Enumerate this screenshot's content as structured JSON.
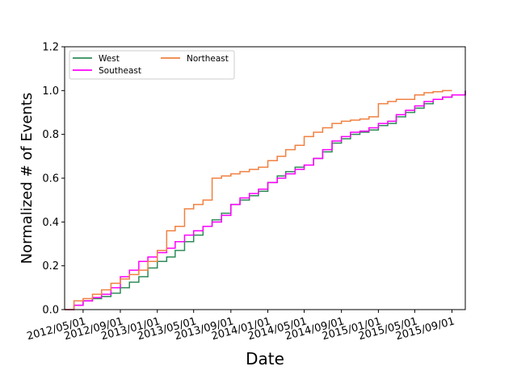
{
  "chart_data": {
    "type": "line",
    "title": "",
    "xlabel": "Date",
    "ylabel": "Normalized # of Events",
    "xlim": [
      "2012-03-01",
      "2015-10-15"
    ],
    "ylim": [
      0.0,
      1.2
    ],
    "x_ticks": [
      "2012-05-01",
      "2012-09-01",
      "2013-01-01",
      "2013-05-01",
      "2013-09-01",
      "2014-01-01",
      "2014-05-01",
      "2014-09-01",
      "2015-01-01",
      "2015-05-01",
      "2015-09-01"
    ],
    "x_tick_labels": [
      "2012/05/01",
      "2012/09/01",
      "2013/01/01",
      "2013/05/01",
      "2013/09/01",
      "2014/01/01",
      "2014/05/01",
      "2014/09/01",
      "2015/01/01",
      "2015/05/01",
      "2015/09/01"
    ],
    "y_ticks": [
      0.0,
      0.2,
      0.4,
      0.6,
      0.8,
      1.0,
      1.2
    ],
    "y_tick_labels": [
      "0.0",
      "0.2",
      "0.4",
      "0.6",
      "0.8",
      "1.0",
      "1.2"
    ],
    "grid": false,
    "legend": {
      "placement": "top-left",
      "columns": 2,
      "order": [
        "West",
        "Southeast",
        "Northeast"
      ]
    },
    "series": [
      {
        "name": "West",
        "color": "#2e8b57",
        "points": [
          [
            "2012-03-01",
            0.0
          ],
          [
            "2012-04-01",
            0.02
          ],
          [
            "2012-05-01",
            0.04
          ],
          [
            "2012-06-01",
            0.05
          ],
          [
            "2012-07-01",
            0.06
          ],
          [
            "2012-08-01",
            0.075
          ],
          [
            "2012-09-01",
            0.1
          ],
          [
            "2012-10-01",
            0.125
          ],
          [
            "2012-11-01",
            0.15
          ],
          [
            "2012-12-01",
            0.19
          ],
          [
            "2013-01-01",
            0.22
          ],
          [
            "2013-02-01",
            0.24
          ],
          [
            "2013-03-01",
            0.27
          ],
          [
            "2013-04-01",
            0.31
          ],
          [
            "2013-05-01",
            0.34
          ],
          [
            "2013-06-01",
            0.38
          ],
          [
            "2013-07-01",
            0.41
          ],
          [
            "2013-08-01",
            0.44
          ],
          [
            "2013-09-01",
            0.48
          ],
          [
            "2013-10-01",
            0.5
          ],
          [
            "2013-11-01",
            0.52
          ],
          [
            "2013-12-01",
            0.54
          ],
          [
            "2014-01-01",
            0.58
          ],
          [
            "2014-02-01",
            0.61
          ],
          [
            "2014-03-01",
            0.63
          ],
          [
            "2014-04-01",
            0.65
          ],
          [
            "2014-05-01",
            0.66
          ],
          [
            "2014-06-01",
            0.69
          ],
          [
            "2014-07-01",
            0.72
          ],
          [
            "2014-08-01",
            0.76
          ],
          [
            "2014-09-01",
            0.78
          ],
          [
            "2014-10-01",
            0.8
          ],
          [
            "2014-11-01",
            0.81
          ],
          [
            "2014-12-01",
            0.82
          ],
          [
            "2015-01-01",
            0.84
          ],
          [
            "2015-02-01",
            0.85
          ],
          [
            "2015-03-01",
            0.88
          ],
          [
            "2015-04-01",
            0.9
          ],
          [
            "2015-05-01",
            0.92
          ],
          [
            "2015-06-01",
            0.94
          ],
          [
            "2015-07-01",
            0.96
          ],
          [
            "2015-08-01",
            0.97
          ],
          [
            "2015-09-01",
            0.98
          ],
          [
            "2015-10-15",
            1.0
          ]
        ]
      },
      {
        "name": "Southeast",
        "color": "#ff00ff",
        "points": [
          [
            "2012-03-01",
            0.0
          ],
          [
            "2012-04-01",
            0.02
          ],
          [
            "2012-05-01",
            0.04
          ],
          [
            "2012-06-01",
            0.055
          ],
          [
            "2012-07-01",
            0.07
          ],
          [
            "2012-08-01",
            0.1
          ],
          [
            "2012-09-01",
            0.15
          ],
          [
            "2012-10-01",
            0.18
          ],
          [
            "2012-11-01",
            0.22
          ],
          [
            "2012-12-01",
            0.24
          ],
          [
            "2013-01-01",
            0.26
          ],
          [
            "2013-02-01",
            0.28
          ],
          [
            "2013-03-01",
            0.31
          ],
          [
            "2013-04-01",
            0.34
          ],
          [
            "2013-05-01",
            0.36
          ],
          [
            "2013-06-01",
            0.38
          ],
          [
            "2013-07-01",
            0.4
          ],
          [
            "2013-08-01",
            0.43
          ],
          [
            "2013-09-01",
            0.48
          ],
          [
            "2013-10-01",
            0.51
          ],
          [
            "2013-11-01",
            0.53
          ],
          [
            "2013-12-01",
            0.55
          ],
          [
            "2014-01-01",
            0.58
          ],
          [
            "2014-02-01",
            0.6
          ],
          [
            "2014-03-01",
            0.62
          ],
          [
            "2014-04-01",
            0.64
          ],
          [
            "2014-05-01",
            0.66
          ],
          [
            "2014-06-01",
            0.69
          ],
          [
            "2014-07-01",
            0.73
          ],
          [
            "2014-08-01",
            0.77
          ],
          [
            "2014-09-01",
            0.79
          ],
          [
            "2014-10-01",
            0.81
          ],
          [
            "2014-11-01",
            0.815
          ],
          [
            "2014-12-01",
            0.83
          ],
          [
            "2015-01-01",
            0.85
          ],
          [
            "2015-02-01",
            0.86
          ],
          [
            "2015-03-01",
            0.89
          ],
          [
            "2015-04-01",
            0.91
          ],
          [
            "2015-05-01",
            0.93
          ],
          [
            "2015-06-01",
            0.95
          ],
          [
            "2015-07-01",
            0.96
          ],
          [
            "2015-08-01",
            0.97
          ],
          [
            "2015-09-01",
            0.98
          ],
          [
            "2015-10-15",
            1.0
          ]
        ]
      },
      {
        "name": "Northeast",
        "color": "#f08040",
        "points": [
          [
            "2012-03-01",
            0.0
          ],
          [
            "2012-04-01",
            0.04
          ],
          [
            "2012-05-01",
            0.05
          ],
          [
            "2012-06-01",
            0.07
          ],
          [
            "2012-07-01",
            0.09
          ],
          [
            "2012-08-01",
            0.12
          ],
          [
            "2012-09-01",
            0.14
          ],
          [
            "2012-10-01",
            0.16
          ],
          [
            "2012-11-01",
            0.18
          ],
          [
            "2012-12-01",
            0.22
          ],
          [
            "2013-01-01",
            0.27
          ],
          [
            "2013-02-01",
            0.36
          ],
          [
            "2013-03-01",
            0.38
          ],
          [
            "2013-04-01",
            0.46
          ],
          [
            "2013-05-01",
            0.48
          ],
          [
            "2013-06-01",
            0.5
          ],
          [
            "2013-07-01",
            0.6
          ],
          [
            "2013-08-01",
            0.61
          ],
          [
            "2013-09-01",
            0.62
          ],
          [
            "2013-10-01",
            0.63
          ],
          [
            "2013-11-01",
            0.64
          ],
          [
            "2013-12-01",
            0.65
          ],
          [
            "2014-01-01",
            0.68
          ],
          [
            "2014-02-01",
            0.7
          ],
          [
            "2014-03-01",
            0.73
          ],
          [
            "2014-04-01",
            0.75
          ],
          [
            "2014-05-01",
            0.79
          ],
          [
            "2014-06-01",
            0.81
          ],
          [
            "2014-07-01",
            0.83
          ],
          [
            "2014-08-01",
            0.85
          ],
          [
            "2014-09-01",
            0.86
          ],
          [
            "2014-10-01",
            0.865
          ],
          [
            "2014-11-01",
            0.87
          ],
          [
            "2014-12-01",
            0.88
          ],
          [
            "2015-01-01",
            0.94
          ],
          [
            "2015-02-01",
            0.95
          ],
          [
            "2015-03-01",
            0.96
          ],
          [
            "2015-04-01",
            0.96
          ],
          [
            "2015-05-01",
            0.98
          ],
          [
            "2015-06-01",
            0.99
          ],
          [
            "2015-07-01",
            0.995
          ],
          [
            "2015-08-01",
            1.0
          ],
          [
            "2015-09-01",
            1.0
          ]
        ]
      }
    ]
  }
}
